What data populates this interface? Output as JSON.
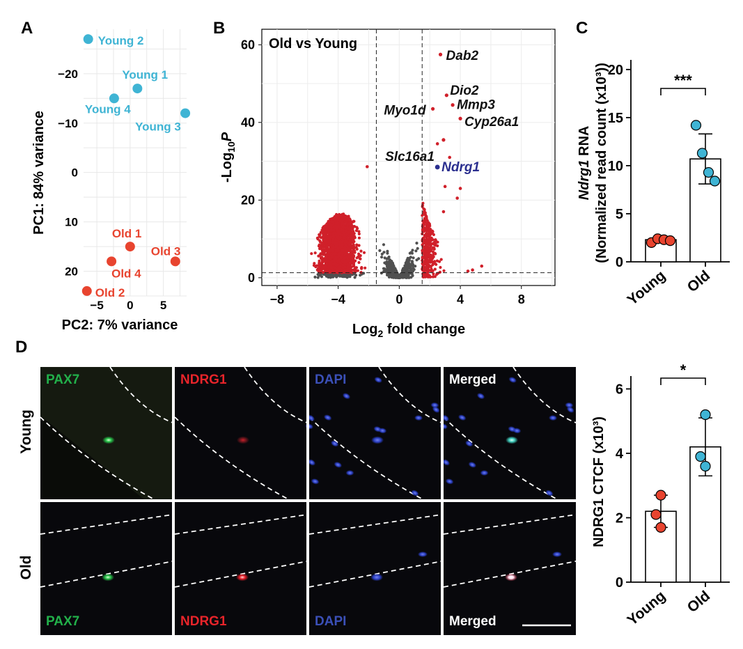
{
  "colors": {
    "young": "#3fb4d4",
    "old": "#e8442f",
    "sig": "#d0202a",
    "nonsig": "#505050",
    "ndrg1": "#2b2f8f",
    "pax7": "#22b04a",
    "ndrg1_label": "#e8242a",
    "dapi": "#3b50b8"
  },
  "chart_data": [
    {
      "panel": "A",
      "type": "scatter",
      "xlabel": "PC2: 7% variance",
      "ylabel": "PC1: 84% variance",
      "xlim": [
        -7,
        8.5
      ],
      "ylim": [
        25,
        -29
      ],
      "y_reversed": true,
      "xticks": [
        -5,
        0,
        5
      ],
      "yticks": [
        -20,
        -10,
        0,
        10,
        20
      ],
      "points": [
        {
          "label": "Young 2",
          "x": -6.3,
          "y": -27.0,
          "group": "young"
        },
        {
          "label": "Young 1",
          "x": 1.1,
          "y": -17.0,
          "group": "young"
        },
        {
          "label": "Young 4",
          "x": -2.4,
          "y": -15.0,
          "group": "young"
        },
        {
          "label": "Young 3",
          "x": 8.3,
          "y": -12.0,
          "group": "young"
        },
        {
          "label": "Old 1",
          "x": 0.0,
          "y": 15.0,
          "group": "old"
        },
        {
          "label": "Old 3",
          "x": 6.8,
          "y": 18.0,
          "group": "old"
        },
        {
          "label": "Old 4",
          "x": -2.8,
          "y": 18.0,
          "group": "old"
        },
        {
          "label": "Old 2",
          "x": -6.5,
          "y": 24.0,
          "group": "old"
        }
      ]
    },
    {
      "panel": "B",
      "type": "scatter",
      "title": "Old vs Young",
      "xlabel_main": "Log",
      "xlabel_sub": "2",
      "xlabel_tail": " fold change",
      "ylabel_main": "-Log",
      "ylabel_sub": "10",
      "ylabel_tail": "P",
      "xlim": [
        -9,
        10.2
      ],
      "ylim": [
        -2,
        64
      ],
      "xticks": [
        -8,
        -4,
        0,
        4,
        8
      ],
      "yticks": [
        0,
        20,
        40,
        60
      ],
      "fc_cutoff": [
        -1.5,
        1.5
      ],
      "p_cutoff": 1.3,
      "labeled_genes": [
        {
          "gene": "Dab2",
          "x": 2.7,
          "y": 57.5,
          "color": "sig"
        },
        {
          "gene": "Dio2",
          "x": 3.1,
          "y": 47.0,
          "color": "sig"
        },
        {
          "gene": "Myo1d",
          "x": 2.2,
          "y": 43.5,
          "color": "sig"
        },
        {
          "gene": "Mmp3",
          "x": 3.5,
          "y": 44.5,
          "color": "sig"
        },
        {
          "gene": "Cyp26a1",
          "x": 4.0,
          "y": 41.0,
          "color": "sig"
        },
        {
          "gene": "Slc16a1",
          "x": 2.9,
          "y": 35.5,
          "color": "sig"
        },
        {
          "gene": "Ndrg1",
          "x": 2.5,
          "y": 28.5,
          "color": "ndrg1"
        }
      ],
      "extra_points": [
        {
          "x": -2.1,
          "y": 28.6
        },
        {
          "x": 2.5,
          "y": 34.5
        },
        {
          "x": 3.3,
          "y": 31.0
        },
        {
          "x": 3.0,
          "y": 23.5
        },
        {
          "x": 4.0,
          "y": 23.0
        },
        {
          "x": 3.8,
          "y": 20.5
        },
        {
          "x": 2.9,
          "y": 17.0
        },
        {
          "x": 5.4,
          "y": 3.0
        },
        {
          "x": 4.8,
          "y": 2.0
        },
        {
          "x": 4.5,
          "y": 1.7
        }
      ]
    },
    {
      "panel": "C",
      "type": "bar",
      "categories": [
        "Young",
        "Old"
      ],
      "values": [
        2.3,
        10.7
      ],
      "errors": [
        0.2,
        2.6
      ],
      "points": [
        [
          2.0,
          2.4,
          2.3,
          2.2
        ],
        [
          14.2,
          11.3,
          9.3,
          8.4
        ]
      ],
      "ylabel_gene": "Ndrg1",
      "ylabel_rest": " RNA",
      "ylabel_line2": "(Normalized read count (x10³))",
      "ylim": [
        0,
        21
      ],
      "yticks": [
        0,
        5,
        10,
        15,
        20
      ],
      "significance": "***"
    },
    {
      "panel": "D",
      "type": "bar",
      "categories": [
        "Young",
        "Old"
      ],
      "values": [
        2.2,
        4.2
      ],
      "errors": [
        0.5,
        0.9
      ],
      "points": [
        [
          2.7,
          2.1,
          1.7
        ],
        [
          5.2,
          3.9,
          3.6
        ]
      ],
      "ylabel": "NDRG1 CTCF (x10³)",
      "ylim": [
        0,
        6.4
      ],
      "yticks": [
        0,
        2,
        4,
        6
      ],
      "significance": "*"
    }
  ],
  "panels": {
    "A": "A",
    "B": "B",
    "C": "C",
    "D": "D"
  },
  "micrographs": {
    "row_labels": [
      "Young",
      "Old"
    ],
    "top_labels": [
      "PAX7",
      "NDRG1",
      "DAPI",
      "Merged"
    ],
    "bottom_labels": [
      "PAX7",
      "NDRG1",
      "DAPI",
      "Merged"
    ]
  }
}
